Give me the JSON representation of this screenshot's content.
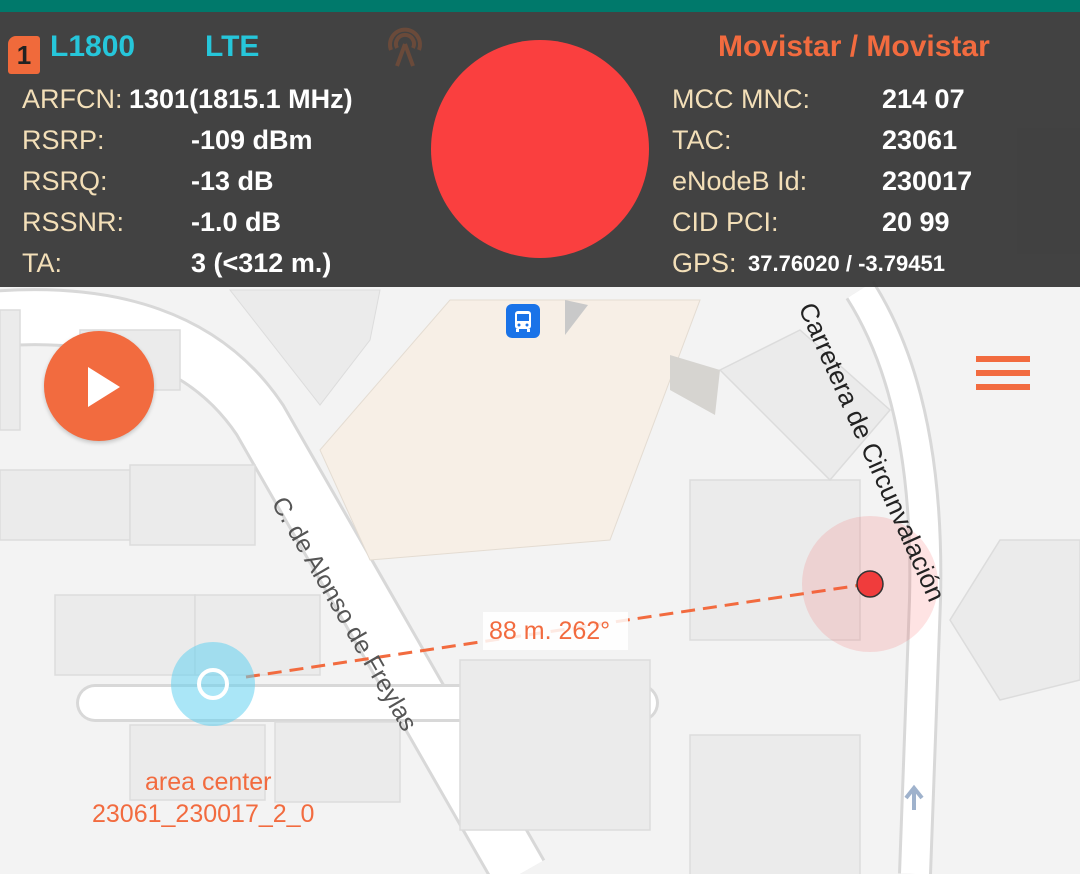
{
  "header": {
    "sim_slot": "1",
    "band": "L1800",
    "technology": "LTE",
    "operator": "Movistar / Movistar",
    "antenna_icon": "antenna-icon"
  },
  "left_metrics": [
    {
      "label": "ARFCN:",
      "value": "1301(1815.1 MHz)"
    },
    {
      "label": "RSRP:",
      "value": "-109 dBm"
    },
    {
      "label": "RSRQ:",
      "value": "-13 dB"
    },
    {
      "label": "RSSNR:",
      "value": "-1.0 dB"
    },
    {
      "label": "TA:",
      "value": "3 (<312 m.)"
    }
  ],
  "right_metrics": [
    {
      "label": "MCC MNC:",
      "value": "214 07"
    },
    {
      "label": "TAC:",
      "value": "23061"
    },
    {
      "label": "eNodeB Id:",
      "value": "230017"
    },
    {
      "label": "CID PCI:",
      "value": "20 99"
    },
    {
      "label": "GPS:",
      "value": "37.76020 / -3.79451"
    }
  ],
  "signal_indicator": {
    "color": "#fa3f3f"
  },
  "map": {
    "street_1": "Carretera de Circunvalación",
    "street_2": "C. de Alonso de Freylas",
    "distance_label": "88 m. 262°",
    "area_center_title": "area center",
    "area_center_id": "23061_230017_2_0"
  },
  "colors": {
    "accent": "#f26b3f",
    "band": "#26c6da",
    "status_bar": "#00796b"
  }
}
